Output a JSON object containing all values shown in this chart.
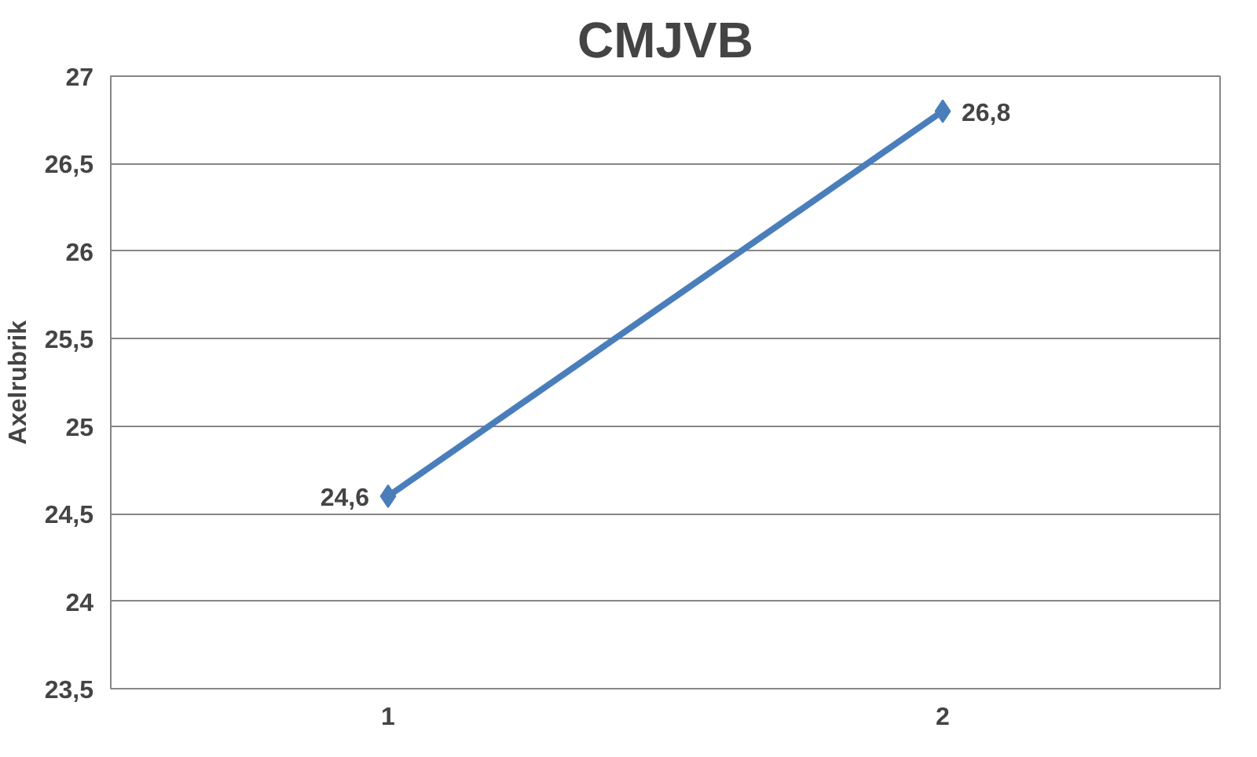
{
  "chart_data": {
    "type": "line",
    "title": "CMJVB",
    "ylabel": "Axelrubrik",
    "categories": [
      "1",
      "2"
    ],
    "series": [
      {
        "color": "#4a7ebb",
        "values": [
          24.6,
          26.8
        ],
        "value_labels": [
          "24,6",
          "26,8"
        ]
      }
    ],
    "ylim": [
      23.5,
      27
    ],
    "yticks": [
      {
        "value": 23.5,
        "label": "23,5"
      },
      {
        "value": 24,
        "label": "24"
      },
      {
        "value": 24.5,
        "label": "24,5"
      },
      {
        "value": 25,
        "label": "25"
      },
      {
        "value": 25.5,
        "label": "25,5"
      },
      {
        "value": 26,
        "label": "26"
      },
      {
        "value": 26.5,
        "label": "26,5"
      },
      {
        "value": 27,
        "label": "27"
      }
    ],
    "grid": "y",
    "marker": "diamond",
    "line_style": "solid"
  }
}
